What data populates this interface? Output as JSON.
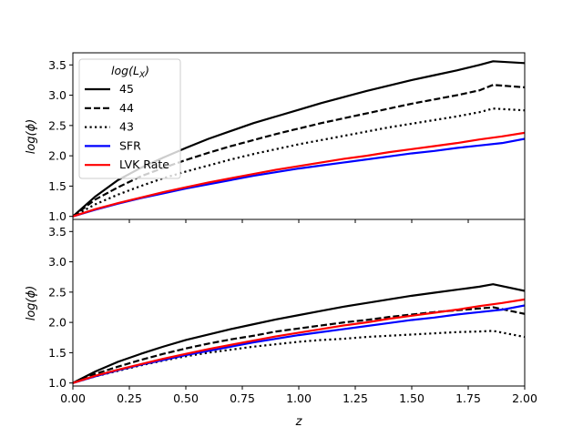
{
  "chart_data": [
    {
      "type": "line",
      "panel": "top",
      "xlabel": "",
      "ylabel": "log(ϕ)",
      "xlim": [
        0,
        2
      ],
      "ylim": [
        0.95,
        3.7
      ],
      "xticks": [
        0.0,
        0.25,
        0.5,
        0.75,
        1.0,
        1.25,
        1.5,
        1.75,
        2.0
      ],
      "xtick_labels_visible": false,
      "yticks": [
        1.0,
        1.5,
        2.0,
        2.5,
        3.0,
        3.5
      ],
      "ytick_labels": [
        "1.0",
        "1.5",
        "2.0",
        "2.5",
        "3.0",
        "3.5"
      ],
      "legend": {
        "title": "log(L_X)",
        "title_main": "log(L",
        "title_sub": "X",
        "title_close": ")",
        "placement": "upper-left",
        "entries": [
          "45",
          "44",
          "43",
          "SFR",
          "LVK Rate"
        ]
      },
      "series": [
        {
          "name": "45",
          "color": "#000000",
          "style": "solid",
          "x": [
            0,
            0.1,
            0.2,
            0.3,
            0.4,
            0.5,
            0.6,
            0.7,
            0.8,
            0.9,
            1.0,
            1.1,
            1.2,
            1.3,
            1.4,
            1.5,
            1.6,
            1.7,
            1.8,
            1.86,
            2.0
          ],
          "y": [
            1.0,
            1.33,
            1.6,
            1.8,
            1.97,
            2.13,
            2.28,
            2.41,
            2.54,
            2.65,
            2.76,
            2.87,
            2.97,
            3.07,
            3.16,
            3.25,
            3.33,
            3.41,
            3.5,
            3.56,
            3.53
          ]
        },
        {
          "name": "44",
          "color": "#000000",
          "style": "dashed",
          "x": [
            0,
            0.1,
            0.2,
            0.3,
            0.4,
            0.5,
            0.6,
            0.7,
            0.8,
            0.9,
            1.0,
            1.1,
            1.2,
            1.3,
            1.4,
            1.5,
            1.6,
            1.7,
            1.8,
            1.86,
            2.0
          ],
          "y": [
            1.0,
            1.28,
            1.48,
            1.66,
            1.8,
            1.93,
            2.05,
            2.16,
            2.26,
            2.36,
            2.45,
            2.54,
            2.62,
            2.7,
            2.78,
            2.86,
            2.93,
            3.0,
            3.08,
            3.17,
            3.13
          ]
        },
        {
          "name": "43",
          "color": "#000000",
          "style": "dotted",
          "x": [
            0,
            0.1,
            0.2,
            0.3,
            0.4,
            0.5,
            0.6,
            0.7,
            0.8,
            0.9,
            1.0,
            1.1,
            1.2,
            1.3,
            1.4,
            1.5,
            1.6,
            1.7,
            1.8,
            1.86,
            2.0
          ],
          "y": [
            1.0,
            1.2,
            1.36,
            1.5,
            1.63,
            1.74,
            1.84,
            1.94,
            2.03,
            2.11,
            2.19,
            2.26,
            2.33,
            2.4,
            2.47,
            2.53,
            2.59,
            2.65,
            2.72,
            2.78,
            2.75
          ]
        },
        {
          "name": "SFR",
          "color": "#0000ff",
          "style": "solid",
          "x": [
            0,
            0.1,
            0.2,
            0.3,
            0.4,
            0.5,
            0.6,
            0.7,
            0.8,
            0.9,
            1.0,
            1.1,
            1.2,
            1.3,
            1.4,
            1.5,
            1.6,
            1.7,
            1.8,
            1.9,
            2.0
          ],
          "y": [
            1.0,
            1.11,
            1.21,
            1.3,
            1.38,
            1.46,
            1.53,
            1.6,
            1.67,
            1.73,
            1.79,
            1.84,
            1.89,
            1.94,
            1.99,
            2.04,
            2.08,
            2.13,
            2.17,
            2.21,
            2.28
          ]
        },
        {
          "name": "LVK Rate",
          "color": "#ff0000",
          "style": "solid",
          "x": [
            0,
            0.1,
            0.2,
            0.3,
            0.4,
            0.5,
            0.6,
            0.7,
            0.8,
            0.9,
            1.0,
            1.1,
            1.2,
            1.3,
            1.4,
            1.5,
            1.6,
            1.7,
            1.8,
            1.9,
            2.0
          ],
          "y": [
            1.0,
            1.12,
            1.22,
            1.31,
            1.4,
            1.48,
            1.56,
            1.63,
            1.7,
            1.77,
            1.83,
            1.89,
            1.95,
            2.0,
            2.06,
            2.11,
            2.16,
            2.21,
            2.27,
            2.32,
            2.38
          ]
        }
      ]
    },
    {
      "type": "line",
      "panel": "bottom",
      "xlabel": "z",
      "ylabel": "log(ϕ)",
      "xlim": [
        0,
        2
      ],
      "ylim": [
        0.95,
        3.7
      ],
      "xticks": [
        0.0,
        0.25,
        0.5,
        0.75,
        1.0,
        1.25,
        1.5,
        1.75,
        2.0
      ],
      "xtick_labels": [
        "0.00",
        "0.25",
        "0.50",
        "0.75",
        "1.00",
        "1.25",
        "1.50",
        "1.75",
        "2.00"
      ],
      "yticks": [
        1.0,
        1.5,
        2.0,
        2.5,
        3.0,
        3.5
      ],
      "ytick_labels": [
        "1.0",
        "1.5",
        "2.0",
        "2.5",
        "3.0",
        "3.5"
      ],
      "series": [
        {
          "name": "45",
          "color": "#000000",
          "style": "solid",
          "x": [
            0,
            0.1,
            0.2,
            0.3,
            0.4,
            0.5,
            0.6,
            0.7,
            0.8,
            0.9,
            1.0,
            1.1,
            1.2,
            1.3,
            1.4,
            1.5,
            1.6,
            1.7,
            1.8,
            1.86,
            2.0
          ],
          "y": [
            1.0,
            1.19,
            1.35,
            1.48,
            1.6,
            1.71,
            1.8,
            1.89,
            1.97,
            2.05,
            2.12,
            2.19,
            2.26,
            2.32,
            2.38,
            2.44,
            2.49,
            2.54,
            2.59,
            2.63,
            2.52
          ]
        },
        {
          "name": "44",
          "color": "#000000",
          "style": "dashed",
          "x": [
            0,
            0.1,
            0.2,
            0.3,
            0.4,
            0.5,
            0.6,
            0.7,
            0.8,
            0.9,
            1.0,
            1.1,
            1.2,
            1.3,
            1.4,
            1.5,
            1.6,
            1.7,
            1.8,
            1.86,
            2.0
          ],
          "y": [
            1.0,
            1.15,
            1.27,
            1.38,
            1.48,
            1.57,
            1.65,
            1.72,
            1.78,
            1.85,
            1.9,
            1.95,
            2.0,
            2.04,
            2.09,
            2.13,
            2.17,
            2.2,
            2.23,
            2.25,
            2.14
          ]
        },
        {
          "name": "43",
          "color": "#000000",
          "style": "dotted",
          "x": [
            0,
            0.1,
            0.2,
            0.3,
            0.4,
            0.5,
            0.6,
            0.7,
            0.8,
            0.9,
            1.0,
            1.1,
            1.2,
            1.3,
            1.4,
            1.5,
            1.6,
            1.7,
            1.8,
            1.86,
            2.0
          ],
          "y": [
            1.0,
            1.11,
            1.2,
            1.29,
            1.37,
            1.44,
            1.5,
            1.55,
            1.6,
            1.64,
            1.68,
            1.71,
            1.73,
            1.76,
            1.78,
            1.8,
            1.82,
            1.84,
            1.85,
            1.86,
            1.76
          ]
        },
        {
          "name": "SFR",
          "color": "#0000ff",
          "style": "solid",
          "x": [
            0,
            0.1,
            0.2,
            0.3,
            0.4,
            0.5,
            0.6,
            0.7,
            0.8,
            0.9,
            1.0,
            1.1,
            1.2,
            1.3,
            1.4,
            1.5,
            1.6,
            1.7,
            1.8,
            1.9,
            2.0
          ],
          "y": [
            1.0,
            1.11,
            1.21,
            1.3,
            1.38,
            1.46,
            1.53,
            1.6,
            1.67,
            1.73,
            1.79,
            1.84,
            1.89,
            1.94,
            1.99,
            2.04,
            2.08,
            2.13,
            2.17,
            2.21,
            2.28
          ]
        },
        {
          "name": "LVK Rate",
          "color": "#ff0000",
          "style": "solid",
          "x": [
            0,
            0.1,
            0.2,
            0.3,
            0.4,
            0.5,
            0.6,
            0.7,
            0.8,
            0.9,
            1.0,
            1.1,
            1.2,
            1.3,
            1.4,
            1.5,
            1.6,
            1.7,
            1.8,
            1.9,
            2.0
          ],
          "y": [
            1.0,
            1.12,
            1.22,
            1.31,
            1.4,
            1.48,
            1.56,
            1.63,
            1.7,
            1.77,
            1.83,
            1.89,
            1.95,
            2.0,
            2.06,
            2.11,
            2.16,
            2.21,
            2.27,
            2.32,
            2.38
          ]
        }
      ]
    }
  ]
}
